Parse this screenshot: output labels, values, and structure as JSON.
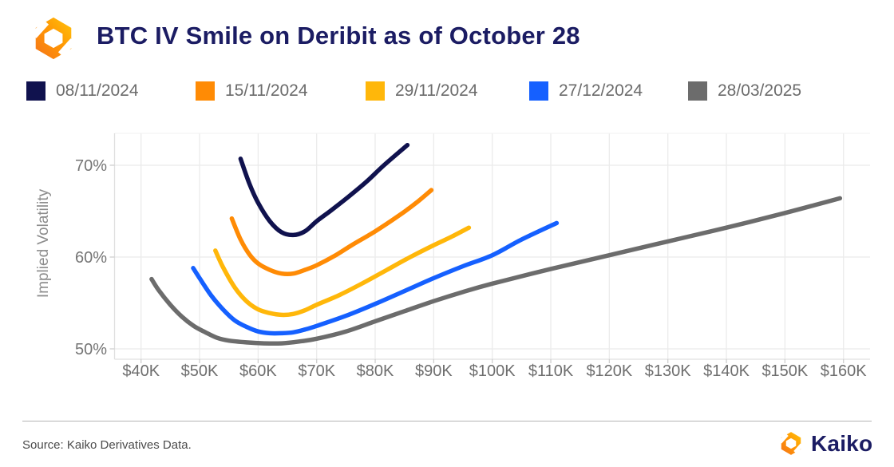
{
  "header": {
    "title": "BTC IV Smile on Deribit as of October 28"
  },
  "chart_data": {
    "type": "line",
    "title": "BTC IV Smile on Deribit as of October 28",
    "xlabel": "",
    "ylabel": "Implied Volatility",
    "x_ticks": [
      40,
      50,
      60,
      70,
      80,
      90,
      100,
      110,
      120,
      130,
      140,
      150,
      160
    ],
    "x_tick_labels": [
      "$40K",
      "$50K",
      "$60K",
      "$70K",
      "$80K",
      "$90K",
      "$100K",
      "$110K",
      "$120K",
      "$130K",
      "$140K",
      "$150K",
      "$160K"
    ],
    "y_ticks": [
      50,
      60,
      70
    ],
    "y_tick_labels": [
      "50%",
      "60%",
      "70%"
    ],
    "x_range": [
      35.5,
      164.5
    ],
    "y_range": [
      48.9,
      73.5
    ],
    "grid": true,
    "legend_position": "top",
    "series": [
      {
        "name": "08/11/2024",
        "color": "#10124e",
        "x": [
          57,
          58.5,
          60,
          62,
          64,
          66,
          68,
          70,
          72.5,
          75.5,
          78.5,
          81.5,
          85.5
        ],
        "y": [
          70.7,
          68.0,
          65.9,
          63.9,
          62.7,
          62.4,
          62.8,
          63.9,
          65.1,
          66.6,
          68.2,
          70.0,
          72.2
        ]
      },
      {
        "name": "15/11/2024",
        "color": "#ff8b05",
        "x": [
          55.5,
          57,
          58.5,
          60,
          62,
          64,
          66,
          68,
          70,
          73,
          76,
          80,
          84,
          87,
          89.6
        ],
        "y": [
          64.2,
          61.9,
          60.3,
          59.3,
          58.6,
          58.2,
          58.2,
          58.6,
          59.1,
          60.1,
          61.3,
          62.8,
          64.5,
          65.9,
          67.3
        ]
      },
      {
        "name": "29/11/2024",
        "color": "#ffb70a",
        "x": [
          52.7,
          54,
          56,
          58,
          60,
          62,
          64,
          66,
          68,
          70,
          74,
          78,
          82,
          86,
          90,
          93,
          96
        ],
        "y": [
          60.7,
          58.9,
          56.7,
          55.2,
          54.3,
          53.9,
          53.7,
          53.8,
          54.2,
          54.8,
          55.9,
          57.2,
          58.6,
          60.0,
          61.3,
          62.2,
          63.2
        ]
      },
      {
        "name": "27/12/2024",
        "color": "#1560ff",
        "x": [
          48.9,
          50,
          52,
          54,
          56,
          58,
          60,
          62,
          64,
          66,
          68,
          70,
          75,
          80,
          85,
          90,
          95,
          100,
          105,
          111
        ],
        "y": [
          58.8,
          57.7,
          55.8,
          54.3,
          53.1,
          52.4,
          51.9,
          51.7,
          51.7,
          51.8,
          52.1,
          52.5,
          53.6,
          54.9,
          56.3,
          57.7,
          59.0,
          60.2,
          61.9,
          63.7
        ]
      },
      {
        "name": "28/03/2025",
        "color": "#6c6c6c",
        "x": [
          41.8,
          43,
          45,
          47,
          49,
          51,
          53,
          55,
          58,
          61,
          64,
          67,
          70,
          75,
          80,
          85,
          90,
          95,
          100,
          110,
          120,
          130,
          140,
          150,
          159.4
        ],
        "y": [
          57.6,
          56.4,
          54.8,
          53.5,
          52.5,
          51.8,
          51.2,
          50.9,
          50.7,
          50.6,
          50.6,
          50.8,
          51.1,
          51.9,
          53.0,
          54.1,
          55.2,
          56.2,
          57.1,
          58.7,
          60.2,
          61.7,
          63.2,
          64.8,
          66.4
        ]
      }
    ]
  },
  "footer": {
    "source": "Source: Kaiko Derivatives Data.",
    "brand": "Kaiko"
  }
}
